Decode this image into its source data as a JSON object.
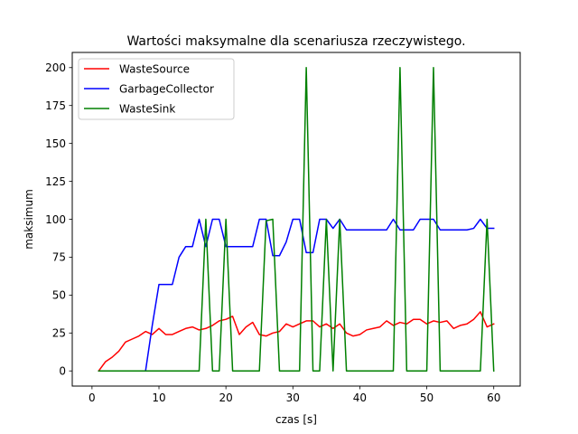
{
  "chart_data": {
    "type": "line",
    "title": "Wartości maksymalne dla scenariusza rzeczywistego.",
    "xlabel": "czas [s]",
    "ylabel": "maksimum",
    "xlim": [
      -2.95,
      63.95
    ],
    "ylim": [
      -10,
      210
    ],
    "xticks": [
      0,
      10,
      20,
      30,
      40,
      50,
      60
    ],
    "yticks": [
      0,
      25,
      50,
      75,
      100,
      125,
      150,
      175,
      200
    ],
    "grid": false,
    "legend_position": "upper-left",
    "x": [
      1,
      2,
      3,
      4,
      5,
      6,
      7,
      8,
      9,
      10,
      11,
      12,
      13,
      14,
      15,
      16,
      17,
      18,
      19,
      20,
      21,
      22,
      23,
      24,
      25,
      26,
      27,
      28,
      29,
      30,
      31,
      32,
      33,
      34,
      35,
      36,
      37,
      38,
      39,
      40,
      41,
      42,
      43,
      44,
      45,
      46,
      47,
      48,
      49,
      50,
      51,
      52,
      53,
      54,
      55,
      56,
      57,
      58,
      59,
      60
    ],
    "series": [
      {
        "name": "WasteSource",
        "color": "#ff0000",
        "values": [
          0,
          6,
          9,
          13,
          19,
          21,
          23,
          26,
          24,
          28,
          24,
          24,
          26,
          28,
          29,
          27,
          28,
          30,
          33,
          34,
          36,
          24,
          29,
          32,
          24,
          23,
          25,
          26,
          31,
          29,
          31,
          33,
          33,
          29,
          31,
          28,
          31,
          25,
          23,
          24,
          27,
          28,
          29,
          33,
          30,
          32,
          31,
          34,
          34,
          31,
          33,
          32,
          33,
          28,
          30,
          31,
          34,
          39,
          29,
          31
        ]
      },
      {
        "name": "GarbageCollector",
        "color": "#0000ff",
        "values": [
          0,
          0,
          0,
          0,
          0,
          0,
          0,
          0,
          30,
          57,
          57,
          57,
          75,
          82,
          82,
          100,
          82,
          100,
          100,
          82,
          82,
          82,
          82,
          82,
          100,
          100,
          76,
          76,
          85,
          100,
          100,
          78,
          78,
          100,
          100,
          94,
          100,
          93,
          93,
          93,
          93,
          93,
          93,
          93,
          100,
          93,
          93,
          93,
          100,
          100,
          100,
          93,
          93,
          93,
          93,
          93,
          94,
          100,
          94,
          94
        ]
      },
      {
        "name": "WasteSink",
        "color": "#008000",
        "values": [
          0,
          0,
          0,
          0,
          0,
          0,
          0,
          0,
          0,
          0,
          0,
          0,
          0,
          0,
          0,
          0,
          100,
          0,
          0,
          100,
          0,
          0,
          0,
          0,
          0,
          99,
          100,
          0,
          0,
          0,
          0,
          200,
          0,
          0,
          100,
          0,
          100,
          0,
          0,
          0,
          0,
          0,
          0,
          0,
          0,
          200,
          0,
          0,
          0,
          0,
          200,
          0,
          0,
          0,
          0,
          0,
          0,
          0,
          100,
          0
        ]
      }
    ]
  }
}
